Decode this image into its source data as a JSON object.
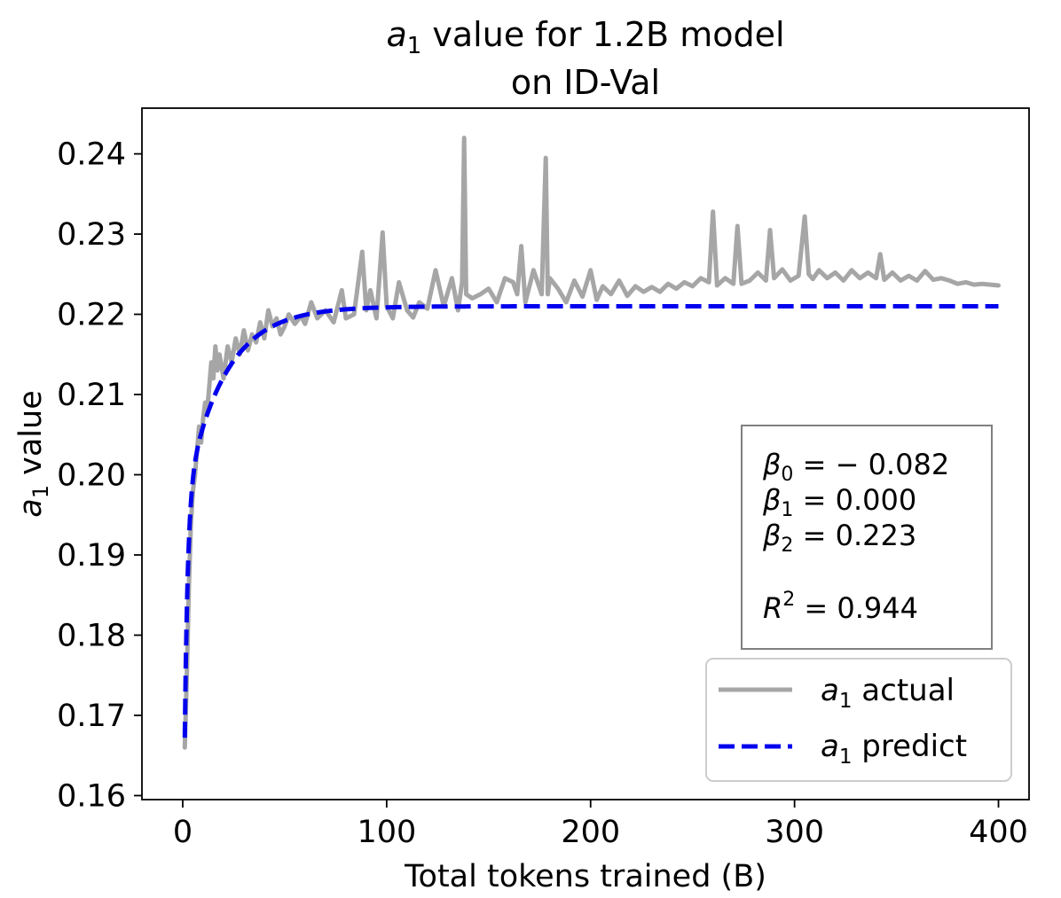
{
  "chart_data": {
    "type": "line",
    "title": {
      "line1_symbol": "a",
      "line1_sub": "1",
      "line1_rest": " value for 1.2B model",
      "line2": "on ID-Val"
    },
    "xlabel": "Total tokens trained (B)",
    "ylabel": {
      "symbol": "a",
      "sub": "1",
      "rest": " value"
    },
    "xlim": [
      -20,
      415
    ],
    "ylim": [
      0.1595,
      0.2457
    ],
    "xticks": [
      0,
      100,
      200,
      300,
      400
    ],
    "xtick_labels": [
      "0",
      "100",
      "200",
      "300",
      "400"
    ],
    "yticks": [
      0.16,
      0.17,
      0.18,
      0.19,
      0.2,
      0.21,
      0.22,
      0.23,
      0.24
    ],
    "ytick_labels": [
      "0.16",
      "0.17",
      "0.18",
      "0.19",
      "0.20",
      "0.21",
      "0.22",
      "0.23",
      "0.24"
    ],
    "series": [
      {
        "name": "a1 actual",
        "color": "#a6a6a6",
        "style": "solid",
        "x": [
          1,
          2,
          3,
          4,
          5,
          6,
          7,
          8,
          9,
          10,
          11,
          12,
          13,
          14,
          15,
          16,
          17,
          18,
          20,
          22,
          24,
          26,
          28,
          30,
          32,
          34,
          36,
          38,
          40,
          42,
          44,
          46,
          48,
          50,
          52,
          55,
          58,
          60,
          63,
          66,
          70,
          74,
          78,
          80,
          84,
          88,
          90,
          92,
          95,
          98,
          100,
          103,
          106,
          110,
          113,
          116,
          120,
          124,
          128,
          132,
          135,
          137,
          138,
          139,
          142,
          146,
          150,
          154,
          158,
          162,
          164,
          166,
          168,
          172,
          176,
          178,
          179,
          180,
          184,
          188,
          192,
          196,
          200,
          203,
          206,
          210,
          214,
          218,
          222,
          226,
          230,
          234,
          238,
          242,
          246,
          250,
          254,
          258,
          260,
          262,
          266,
          270,
          272,
          274,
          278,
          282,
          286,
          288,
          290,
          294,
          298,
          302,
          305,
          307,
          309,
          312,
          316,
          320,
          324,
          328,
          332,
          336,
          340,
          342,
          344,
          348,
          352,
          356,
          360,
          364,
          368,
          372,
          376,
          380,
          384,
          388,
          392,
          396,
          400
        ],
        "y": [
          0.166,
          0.175,
          0.186,
          0.194,
          0.198,
          0.2,
          0.203,
          0.206,
          0.204,
          0.207,
          0.209,
          0.208,
          0.211,
          0.214,
          0.212,
          0.216,
          0.213,
          0.215,
          0.212,
          0.216,
          0.214,
          0.217,
          0.215,
          0.218,
          0.2155,
          0.2175,
          0.2165,
          0.219,
          0.217,
          0.2205,
          0.2185,
          0.2195,
          0.2175,
          0.2185,
          0.22,
          0.2188,
          0.2198,
          0.2188,
          0.2215,
          0.2195,
          0.2205,
          0.219,
          0.223,
          0.2195,
          0.22,
          0.2278,
          0.2205,
          0.223,
          0.2195,
          0.2302,
          0.221,
          0.2195,
          0.224,
          0.2205,
          0.2196,
          0.2215,
          0.2207,
          0.2255,
          0.221,
          0.2245,
          0.2205,
          0.224,
          0.242,
          0.2225,
          0.222,
          0.2225,
          0.2232,
          0.2215,
          0.2245,
          0.224,
          0.2225,
          0.2285,
          0.2215,
          0.2255,
          0.2225,
          0.2395,
          0.2225,
          0.2245,
          0.2232,
          0.2215,
          0.2242,
          0.2222,
          0.2255,
          0.2218,
          0.2235,
          0.2225,
          0.2242,
          0.2223,
          0.2235,
          0.2228,
          0.2234,
          0.2228,
          0.2238,
          0.2232,
          0.224,
          0.2235,
          0.2245,
          0.224,
          0.2328,
          0.2236,
          0.2245,
          0.2238,
          0.231,
          0.2238,
          0.2242,
          0.2252,
          0.2242,
          0.2305,
          0.2245,
          0.2256,
          0.2242,
          0.2248,
          0.2322,
          0.225,
          0.2244,
          0.2255,
          0.2245,
          0.2252,
          0.2242,
          0.2255,
          0.2245,
          0.2252,
          0.2245,
          0.2275,
          0.2243,
          0.2252,
          0.2242,
          0.2248,
          0.2242,
          0.2254,
          0.2243,
          0.2245,
          0.2242,
          0.2238,
          0.224,
          0.2237,
          0.2238,
          0.2237,
          0.2236
        ]
      },
      {
        "name": "a1 predict",
        "color": "#0000ee",
        "style": "dashed",
        "formula": "a1(x) = 0.221 - 0.058 * exp(-x / 1.5) - 0.0253 * exp(-x / 19)",
        "x_range": [
          1,
          400
        ]
      }
    ],
    "legend": {
      "position": "lower-right",
      "entries": [
        {
          "symbol": "a",
          "sub": "1",
          "rest": " actual"
        },
        {
          "symbol": "a",
          "sub": "1",
          "rest": " predict"
        }
      ]
    },
    "annotation": {
      "position": "right",
      "lines": [
        {
          "greek": "β",
          "sub": "0",
          "text": " = − 0.082"
        },
        {
          "greek": "β",
          "sub": "1",
          "text": " = 0.000"
        },
        {
          "greek": "β",
          "sub": "2",
          "text": " = 0.223"
        },
        {
          "greek": "R",
          "sup": "2",
          "text": " = 0.944"
        }
      ]
    },
    "grid": false
  }
}
